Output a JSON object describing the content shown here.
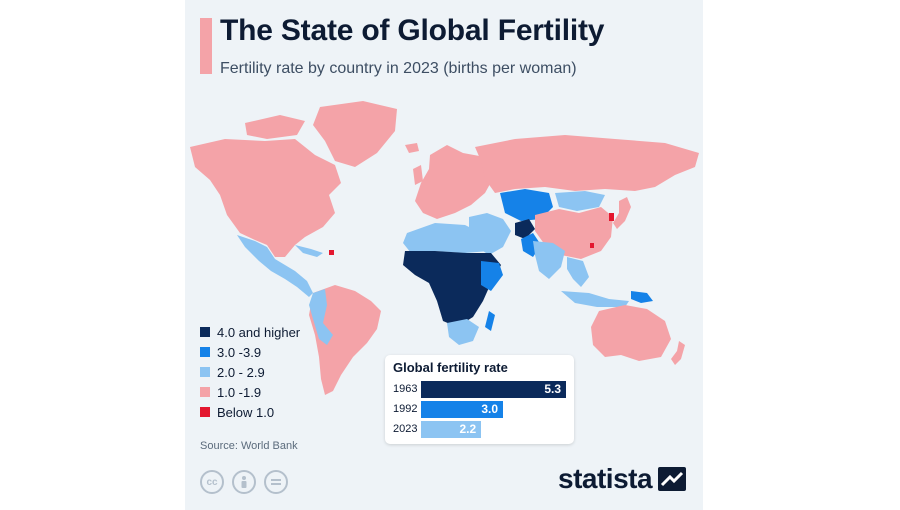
{
  "title": "The State of Global Fertility",
  "subtitle": "Fertility rate by country in 2023 (births per woman)",
  "legend": [
    {
      "label": "4.0 and higher",
      "color": "#0b2a5b"
    },
    {
      "label": "3.0 -3.9",
      "color": "#1582e8"
    },
    {
      "label": "2.0 - 2.9",
      "color": "#8cc4f2"
    },
    {
      "label": "1.0 -1.9",
      "color": "#f4a3a8"
    },
    {
      "label": "Below 1.0",
      "color": "#e3172f"
    }
  ],
  "source": "Source: World Bank",
  "license_icons": [
    "cc",
    "by",
    "nd"
  ],
  "logo": "statista",
  "inset": {
    "title": "Global fertility rate",
    "rows": [
      {
        "year": "1963",
        "value": "5.3",
        "color": "#0b2a5b"
      },
      {
        "year": "1992",
        "value": "3.0",
        "color": "#1582e8"
      },
      {
        "year": "2023",
        "value": "2.2",
        "color": "#8cc4f2"
      }
    ]
  },
  "chart_data": {
    "type": "bar",
    "categories": [
      "1963",
      "1992",
      "2023"
    ],
    "values": [
      5.3,
      3.0,
      2.2
    ],
    "title": "Global fertility rate",
    "xlabel": "",
    "ylabel": "",
    "xlim": [
      0,
      5.3
    ]
  },
  "map_regions": [
    {
      "region": "North America",
      "class": "1.0-1.9"
    },
    {
      "region": "Greenland",
      "class": "1.0-1.9"
    },
    {
      "region": "Central America",
      "class": "2.0-2.9"
    },
    {
      "region": "Puerto Rico",
      "class": "Below 1.0"
    },
    {
      "region": "South America",
      "class": "1.0-1.9"
    },
    {
      "region": "Andean countries",
      "class": "2.0-2.9"
    },
    {
      "region": "Europe",
      "class": "1.0-1.9"
    },
    {
      "region": "Russia",
      "class": "1.0-1.9"
    },
    {
      "region": "North Africa",
      "class": "2.0-2.9"
    },
    {
      "region": "Sub-Saharan Africa",
      "class": "4.0 and higher"
    },
    {
      "region": "East Africa",
      "class": "3.0-3.9"
    },
    {
      "region": "Southern Africa",
      "class": "2.0-2.9"
    },
    {
      "region": "Middle East",
      "class": "2.0-2.9"
    },
    {
      "region": "Central Asia",
      "class": "3.0-3.9"
    },
    {
      "region": "Afghanistan",
      "class": "4.0 and higher"
    },
    {
      "region": "Pakistan",
      "class": "3.0-3.9"
    },
    {
      "region": "South Asia",
      "class": "2.0-2.9"
    },
    {
      "region": "Mongolia",
      "class": "2.0-2.9"
    },
    {
      "region": "China",
      "class": "1.0-1.9"
    },
    {
      "region": "Japan",
      "class": "1.0-1.9"
    },
    {
      "region": "South Korea",
      "class": "Below 1.0"
    },
    {
      "region": "Taiwan",
      "class": "Below 1.0"
    },
    {
      "region": "Southeast Asia",
      "class": "2.0-2.9"
    },
    {
      "region": "Papua New Guinea",
      "class": "3.0-3.9"
    },
    {
      "region": "Australia",
      "class": "1.0-1.9"
    },
    {
      "region": "New Zealand",
      "class": "1.0-1.9"
    }
  ]
}
